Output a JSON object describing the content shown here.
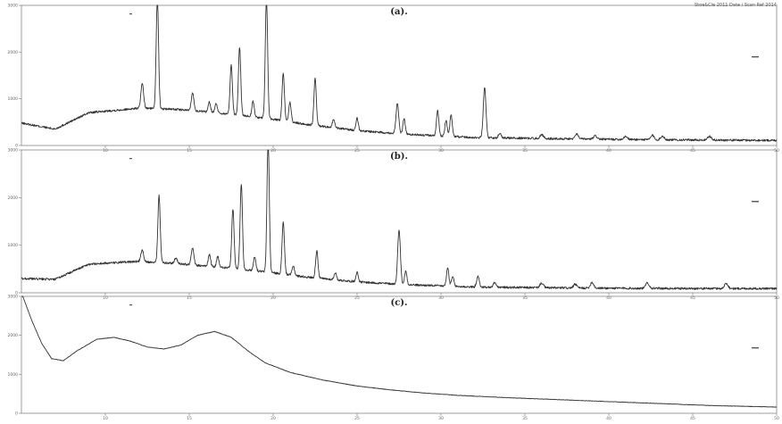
{
  "header_text": "Stoe&Cie 2011  Date / Scan  Ref  2014",
  "chart_data": [
    {
      "type": "line",
      "panel_label": "(a).",
      "xlim": [
        5,
        50
      ],
      "ylim": [
        0,
        3000
      ],
      "y_ticks": [
        "0",
        "1000",
        "2000",
        "3000"
      ],
      "x_ticks": [
        "10",
        "15",
        "20",
        "25",
        "30",
        "35",
        "40",
        "45",
        "50"
      ],
      "baseline": [
        [
          5,
          480
        ],
        [
          7,
          350
        ],
        [
          9,
          700
        ],
        [
          12,
          800
        ],
        [
          14,
          780
        ],
        [
          16,
          720
        ],
        [
          18,
          650
        ],
        [
          20,
          560
        ],
        [
          22,
          450
        ],
        [
          25,
          320
        ],
        [
          28,
          240
        ],
        [
          32,
          170
        ],
        [
          38,
          140
        ],
        [
          44,
          120
        ],
        [
          50,
          110
        ]
      ],
      "peaks": [
        [
          12.2,
          520,
          0.08
        ],
        [
          13.1,
          2400,
          0.07
        ],
        [
          15.2,
          380,
          0.08
        ],
        [
          16.2,
          220,
          0.07
        ],
        [
          16.6,
          210,
          0.07
        ],
        [
          17.5,
          1050,
          0.07
        ],
        [
          18.0,
          1450,
          0.07
        ],
        [
          18.8,
          330,
          0.07
        ],
        [
          19.6,
          2600,
          0.07
        ],
        [
          20.6,
          1000,
          0.07
        ],
        [
          21.0,
          420,
          0.07
        ],
        [
          22.5,
          1000,
          0.07
        ],
        [
          23.6,
          180,
          0.07
        ],
        [
          25.0,
          270,
          0.07
        ],
        [
          27.4,
          640,
          0.08
        ],
        [
          27.8,
          330,
          0.07
        ],
        [
          29.8,
          530,
          0.07
        ],
        [
          30.3,
          330,
          0.07
        ],
        [
          30.6,
          460,
          0.07
        ],
        [
          32.6,
          1080,
          0.08
        ],
        [
          33.5,
          100,
          0.08
        ],
        [
          36.0,
          80,
          0.1
        ],
        [
          38.1,
          100,
          0.1
        ],
        [
          39.2,
          70,
          0.1
        ],
        [
          41.0,
          70,
          0.1
        ],
        [
          42.6,
          90,
          0.1
        ],
        [
          43.2,
          80,
          0.1
        ],
        [
          46.0,
          80,
          0.1
        ]
      ]
    },
    {
      "type": "line",
      "panel_label": "(b).",
      "xlim": [
        5,
        50
      ],
      "ylim": [
        0,
        3000
      ],
      "y_ticks": [
        "0",
        "1000",
        "2000",
        "3000"
      ],
      "x_ticks": [
        "10",
        "15",
        "20",
        "25",
        "30",
        "35",
        "40",
        "45",
        "50"
      ],
      "baseline": [
        [
          5,
          300
        ],
        [
          7,
          280
        ],
        [
          9,
          600
        ],
        [
          12,
          660
        ],
        [
          14,
          620
        ],
        [
          16,
          560
        ],
        [
          18,
          500
        ],
        [
          20,
          420
        ],
        [
          22,
          330
        ],
        [
          25,
          230
        ],
        [
          28,
          170
        ],
        [
          32,
          120
        ],
        [
          38,
          100
        ],
        [
          44,
          90
        ],
        [
          50,
          90
        ]
      ],
      "peaks": [
        [
          12.2,
          250,
          0.08
        ],
        [
          13.2,
          1400,
          0.07
        ],
        [
          14.2,
          120,
          0.08
        ],
        [
          15.2,
          350,
          0.08
        ],
        [
          16.2,
          250,
          0.07
        ],
        [
          16.7,
          220,
          0.07
        ],
        [
          17.6,
          1250,
          0.07
        ],
        [
          18.1,
          1800,
          0.07
        ],
        [
          18.9,
          300,
          0.07
        ],
        [
          19.7,
          2750,
          0.07
        ],
        [
          20.6,
          1100,
          0.07
        ],
        [
          21.2,
          200,
          0.07
        ],
        [
          22.6,
          580,
          0.07
        ],
        [
          23.7,
          150,
          0.07
        ],
        [
          25.0,
          200,
          0.07
        ],
        [
          27.5,
          1150,
          0.08
        ],
        [
          27.9,
          280,
          0.07
        ],
        [
          30.4,
          380,
          0.07
        ],
        [
          30.7,
          200,
          0.07
        ],
        [
          32.2,
          220,
          0.08
        ],
        [
          33.2,
          100,
          0.08
        ],
        [
          36.0,
          100,
          0.1
        ],
        [
          38.0,
          80,
          0.1
        ],
        [
          39.0,
          120,
          0.1
        ],
        [
          42.3,
          120,
          0.1
        ],
        [
          47.0,
          110,
          0.1
        ]
      ]
    },
    {
      "type": "line",
      "panel_label": "(c).",
      "xlim": [
        5,
        50
      ],
      "ylim": [
        0,
        3000
      ],
      "y_ticks": [
        "0",
        "1000",
        "2000",
        "3000"
      ],
      "x_ticks": [
        "10",
        "15",
        "20",
        "25",
        "30",
        "35",
        "40",
        "45",
        "50"
      ],
      "curve": [
        [
          5.0,
          3100
        ],
        [
          5.6,
          2400
        ],
        [
          6.2,
          1800
        ],
        [
          6.8,
          1400
        ],
        [
          7.5,
          1350
        ],
        [
          8.3,
          1600
        ],
        [
          9.5,
          1900
        ],
        [
          10.5,
          1950
        ],
        [
          11.5,
          1850
        ],
        [
          12.5,
          1700
        ],
        [
          13.5,
          1650
        ],
        [
          14.5,
          1750
        ],
        [
          15.5,
          2000
        ],
        [
          16.5,
          2100
        ],
        [
          17.5,
          1950
        ],
        [
          18.5,
          1600
        ],
        [
          19.5,
          1300
        ],
        [
          21.0,
          1050
        ],
        [
          23.0,
          850
        ],
        [
          25.0,
          700
        ],
        [
          27.0,
          600
        ],
        [
          29.0,
          520
        ],
        [
          31.0,
          460
        ],
        [
          34.0,
          400
        ],
        [
          37.0,
          350
        ],
        [
          40.0,
          300
        ],
        [
          43.0,
          250
        ],
        [
          46.0,
          200
        ],
        [
          50.0,
          160
        ]
      ],
      "peaks": []
    }
  ]
}
